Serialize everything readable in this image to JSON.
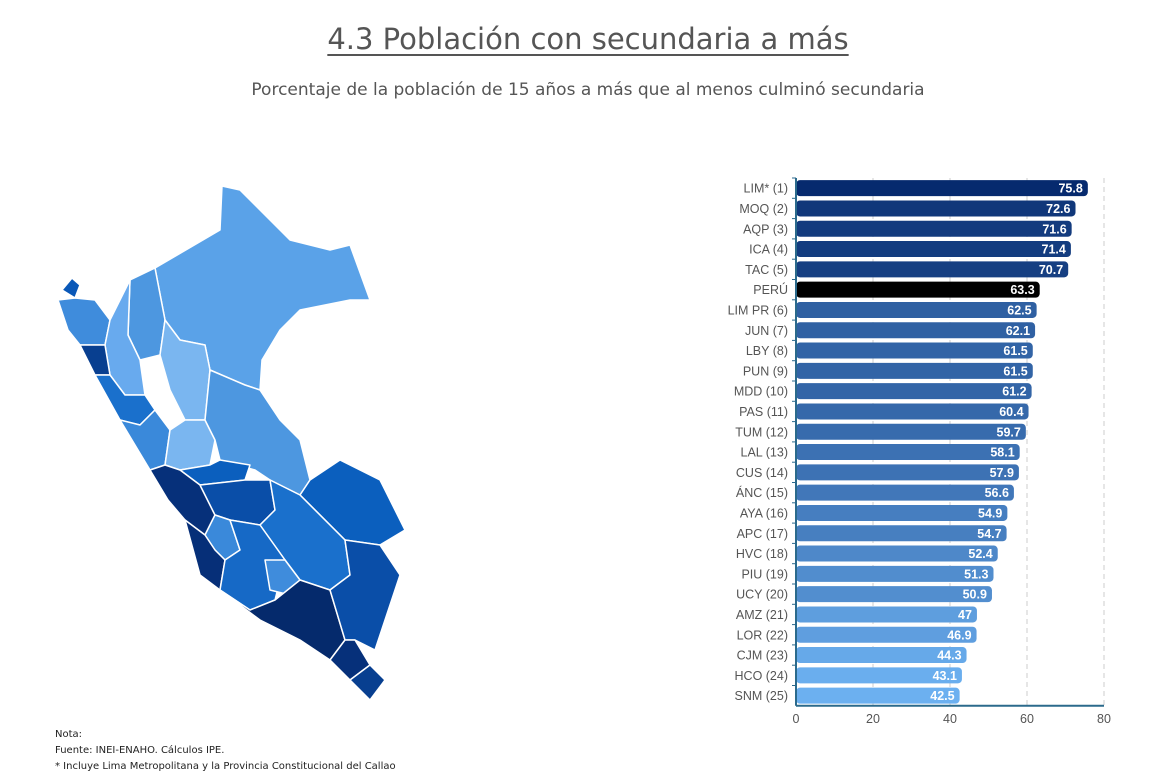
{
  "header": {
    "title": "4.3 Población con secundaria a más",
    "subtitle": "Porcentaje de la población de 15 años a más que al menos culminó secundaria"
  },
  "notes": {
    "nota": "Nota:",
    "fuente": "Fuente: INEI-ENAHO. Cálculos IPE.",
    "asterisk": "* Incluye Lima Metropolitana y la Provincia Constitucional del Callao"
  },
  "colors": {
    "dark": "#062a6e",
    "light": "#6cb0f0",
    "national": "#000000",
    "axis": "#2b6a8c"
  },
  "chart_data": {
    "type": "bar",
    "orientation": "horizontal",
    "title": "4.3 Población con secundaria a más",
    "subtitle": "Porcentaje de la población de 15 años a más que al menos culminó secundaria",
    "categories": [
      "LIM* (1)",
      "MOQ (2)",
      "AQP (3)",
      "ICA (4)",
      "TAC (5)",
      "PERÚ",
      "LIM PR (6)",
      "JUN (7)",
      "LBY (8)",
      "PUN (9)",
      "MDD (10)",
      "PAS (11)",
      "TUM (12)",
      "LAL (13)",
      "CUS (14)",
      "ÁNC (15)",
      "AYA (16)",
      "APC (17)",
      "HVC (18)",
      "PIU (19)",
      "UCY (20)",
      "AMZ (21)",
      "LOR (22)",
      "CJM (23)",
      "HCO (24)",
      "SNM (25)"
    ],
    "values": [
      75.8,
      72.6,
      71.6,
      71.4,
      70.7,
      63.3,
      62.5,
      62.1,
      61.5,
      61.5,
      61.2,
      60.4,
      59.7,
      58.1,
      57.9,
      56.6,
      54.9,
      54.7,
      52.4,
      51.3,
      50.9,
      47,
      46.9,
      44.3,
      43.1,
      42.5
    ],
    "value_labels": [
      "75.8",
      "72.6",
      "71.6",
      "71.4",
      "70.7",
      "63.3",
      "62.5",
      "62.1",
      "61.5",
      "61.5",
      "61.2",
      "60.4",
      "59.7",
      "58.1",
      "57.9",
      "56.6",
      "54.9",
      "54.7",
      "52.4",
      "51.3",
      "50.9",
      "47",
      "46.9",
      "44.3",
      "43.1",
      "42.5"
    ],
    "highlight": "PERÚ",
    "xlim": [
      0,
      80
    ],
    "xticks": [
      0,
      20,
      40,
      60,
      80
    ],
    "xtick_labels": [
      "0",
      "20",
      "40",
      "60",
      "80"
    ],
    "grid": "vertical dashed",
    "xlabel": "",
    "ylabel": ""
  }
}
